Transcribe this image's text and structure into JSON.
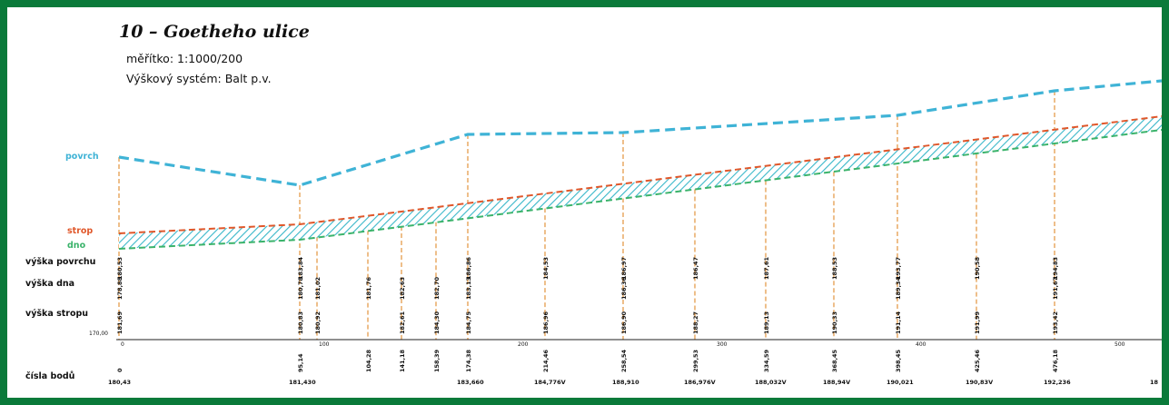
{
  "title": "10 – Goetheho ulice",
  "scale": "měřítko: 1:1000/200",
  "height_system": "Výškový systém: Balt p.v.",
  "legend": {
    "povrch": "povrch",
    "strop": "strop",
    "dno": "dno"
  },
  "row_labels": {
    "vyska_povrchu": "výška povrchu",
    "vyska_dna": "výška dna",
    "vyska_stropu": "výška stropu",
    "cisla_bodu": "čísla bodů"
  },
  "datum_label": "170,00",
  "colors": {
    "povrch": "#3fb3d6",
    "strop": "#e0572a",
    "dno": "#3bb36b",
    "hatch": "#39b7c9",
    "guide": "#e08a2a",
    "frame": "#0a7a3a"
  },
  "axis_ticks": [
    "0",
    "100",
    "200",
    "300",
    "400",
    "500"
  ],
  "stations": [
    {
      "chainage": "0",
      "point": "180,43",
      "v1": "181,69",
      "v2": "178,88",
      "v3": "180,53"
    },
    {
      "chainage": "95,14",
      "point": "181,430",
      "v1": "180,83",
      "v2": "180,78",
      "v3": "183,84"
    },
    {
      "chainage": "",
      "point": "",
      "v1": "180,92",
      "v2": "181,02",
      "v3": ""
    },
    {
      "chainage": "104,28",
      "point": "",
      "v1": "",
      "v2": "181,76",
      "v3": ""
    },
    {
      "chainage": "141,18",
      "point": "",
      "v1": "182,61",
      "v2": "182,63",
      "v3": ""
    },
    {
      "chainage": "158,39",
      "point": "",
      "v1": "184,30",
      "v2": "182,70",
      "v3": ""
    },
    {
      "chainage": "174,38",
      "point": "183,660",
      "v1": "184,75",
      "v2": "183,13",
      "v3": "186,86"
    },
    {
      "chainage": "214,46",
      "point": "184,776V",
      "v1": "186,96",
      "v2": "",
      "v3": "184,53"
    },
    {
      "chainage": "258,54",
      "point": "188,910",
      "v1": "186,90",
      "v2": "186,36",
      "v3": "186,97"
    },
    {
      "chainage": "299,53",
      "point": "186,976V",
      "v1": "188,27",
      "v2": "",
      "v3": "186,47"
    },
    {
      "chainage": "334,59",
      "point": "188,032V",
      "v1": "189,13",
      "v2": "",
      "v3": "187,61"
    },
    {
      "chainage": "368,45",
      "point": "188,94V",
      "v1": "190,33",
      "v2": "",
      "v3": "188,53"
    },
    {
      "chainage": "398,45",
      "point": "190,021",
      "v1": "191,14",
      "v2": "189,34",
      "v3": "193,77"
    },
    {
      "chainage": "425,46",
      "point": "190,83V",
      "v1": "191,99",
      "v2": "",
      "v3": "190,58"
    },
    {
      "chainage": "476,18",
      "point": "192,236",
      "v1": "193,42",
      "v2": "191,67",
      "v3": "194,83"
    },
    {
      "chainage": "",
      "point": "18",
      "v1": "",
      "v2": "",
      "v3": ""
    }
  ]
}
